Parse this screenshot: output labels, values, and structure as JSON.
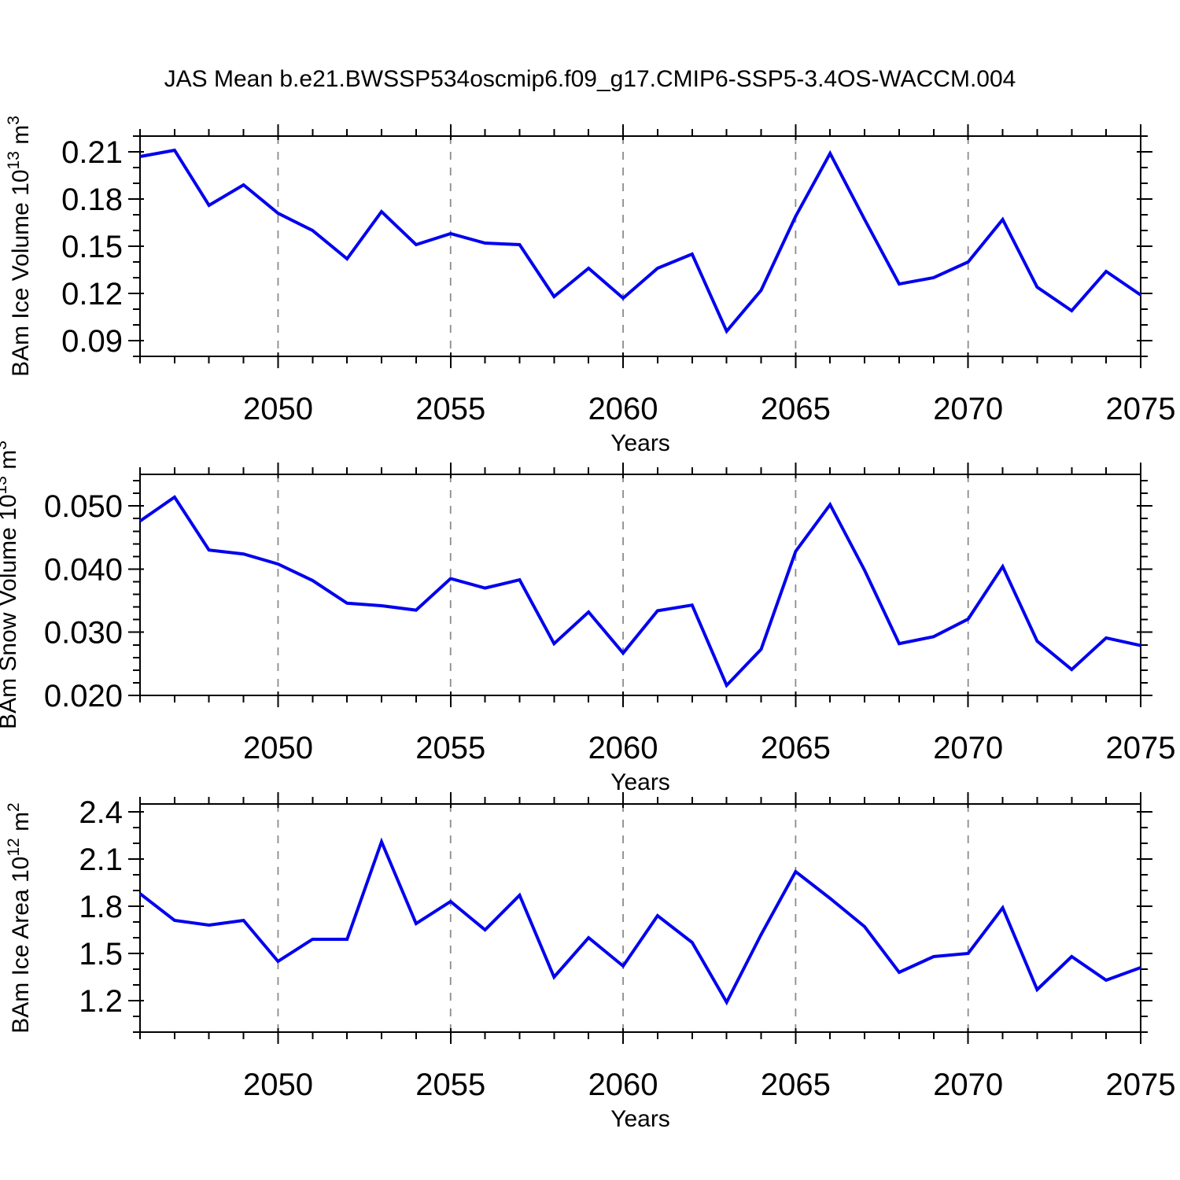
{
  "title": "JAS Mean b.e21.BWSSP534oscmip6.f09_g17.CMIP6-SSP5-3.4OS-WACCM.004",
  "colors": {
    "line": "#0000ee",
    "grid": "#8c8c8c",
    "axis": "#000000",
    "text": "#000000",
    "background": "#ffffff"
  },
  "chart_data": [
    {
      "type": "line",
      "name": "ice-volume",
      "ylabel": "BAm Ice Volume 10¹³ m³",
      "ylabel_parts": [
        {
          "t": "BAm Ice Volume 10"
        },
        {
          "t": "13",
          "sup": true
        },
        {
          "t": " m"
        },
        {
          "t": "3",
          "sup": true
        }
      ],
      "xlabel": "Years",
      "x": [
        2046,
        2047,
        2048,
        2049,
        2050,
        2051,
        2052,
        2053,
        2054,
        2055,
        2056,
        2057,
        2058,
        2059,
        2060,
        2061,
        2062,
        2063,
        2064,
        2065,
        2066,
        2067,
        2068,
        2069,
        2070,
        2071,
        2072,
        2073,
        2074,
        2075
      ],
      "values": [
        0.207,
        0.211,
        0.176,
        0.189,
        0.171,
        0.16,
        0.142,
        0.172,
        0.151,
        0.158,
        0.152,
        0.151,
        0.118,
        0.136,
        0.117,
        0.136,
        0.145,
        0.096,
        0.122,
        0.169,
        0.209,
        0.167,
        0.126,
        0.13,
        0.14,
        0.167,
        0.124,
        0.109,
        0.134,
        0.119
      ],
      "xlim": [
        2046,
        2075
      ],
      "ylim": [
        0.08,
        0.22
      ],
      "xticks": [
        2050,
        2055,
        2060,
        2065,
        2070,
        2075
      ],
      "xtick_labels": [
        "2050",
        "2055",
        "2060",
        "2065",
        "2070",
        "2075"
      ],
      "x_minor_step": 1,
      "yticks": [
        0.09,
        0.12,
        0.15,
        0.18,
        0.21
      ],
      "ytick_labels": [
        "0.09",
        "0.12",
        "0.15",
        "0.18",
        "0.21"
      ],
      "y_minor_step": 0.01,
      "grid": "vertical-dashed-at-major-x",
      "legend": "none"
    },
    {
      "type": "line",
      "name": "snow-volume",
      "ylabel": "BAm Snow Volume 10¹³ m³",
      "ylabel_parts": [
        {
          "t": "BAm Snow Volume 10"
        },
        {
          "t": "13",
          "sup": true
        },
        {
          "t": " m"
        },
        {
          "t": "3",
          "sup": true
        }
      ],
      "xlabel": "Years",
      "x": [
        2046,
        2047,
        2048,
        2049,
        2050,
        2051,
        2052,
        2053,
        2054,
        2055,
        2056,
        2057,
        2058,
        2059,
        2060,
        2061,
        2062,
        2063,
        2064,
        2065,
        2066,
        2067,
        2068,
        2069,
        2070,
        2071,
        2072,
        2073,
        2074,
        2075
      ],
      "values": [
        0.0476,
        0.0514,
        0.043,
        0.0424,
        0.0408,
        0.0382,
        0.0346,
        0.0342,
        0.0335,
        0.0385,
        0.037,
        0.0383,
        0.0282,
        0.0332,
        0.0267,
        0.0334,
        0.0343,
        0.0216,
        0.0273,
        0.0428,
        0.0502,
        0.0398,
        0.0282,
        0.0293,
        0.0321,
        0.0404,
        0.0286,
        0.0241,
        0.0291,
        0.0279
      ],
      "xlim": [
        2046,
        2075
      ],
      "ylim": [
        0.02,
        0.055
      ],
      "xticks": [
        2050,
        2055,
        2060,
        2065,
        2070,
        2075
      ],
      "xtick_labels": [
        "2050",
        "2055",
        "2060",
        "2065",
        "2070",
        "2075"
      ],
      "x_minor_step": 1,
      "yticks": [
        0.02,
        0.03,
        0.04,
        0.05
      ],
      "ytick_labels": [
        "0.020",
        "0.030",
        "0.040",
        "0.050"
      ],
      "y_minor_step": 0.002,
      "grid": "vertical-dashed-at-major-x",
      "legend": "none"
    },
    {
      "type": "line",
      "name": "ice-area",
      "ylabel": "BAm Ice Area 10¹² m²",
      "ylabel_parts": [
        {
          "t": "BAm Ice Area 10"
        },
        {
          "t": "12",
          "sup": true
        },
        {
          "t": " m"
        },
        {
          "t": "2",
          "sup": true
        }
      ],
      "xlabel": "Years",
      "x": [
        2046,
        2047,
        2048,
        2049,
        2050,
        2051,
        2052,
        2053,
        2054,
        2055,
        2056,
        2057,
        2058,
        2059,
        2060,
        2061,
        2062,
        2063,
        2064,
        2065,
        2066,
        2067,
        2068,
        2069,
        2070,
        2071,
        2072,
        2073,
        2074,
        2075
      ],
      "values": [
        1.88,
        1.71,
        1.68,
        1.71,
        1.45,
        1.59,
        1.59,
        2.21,
        1.69,
        1.83,
        1.65,
        1.87,
        1.35,
        1.6,
        1.42,
        1.74,
        1.57,
        1.19,
        1.62,
        2.02,
        1.85,
        1.67,
        1.38,
        1.48,
        1.5,
        1.79,
        1.27,
        1.48,
        1.33,
        1.41
      ],
      "xlim": [
        2046,
        2075
      ],
      "ylim": [
        1.0,
        2.45
      ],
      "xticks": [
        2050,
        2055,
        2060,
        2065,
        2070,
        2075
      ],
      "xtick_labels": [
        "2050",
        "2055",
        "2060",
        "2065",
        "2070",
        "2075"
      ],
      "x_minor_step": 1,
      "yticks": [
        1.2,
        1.5,
        1.8,
        2.1,
        2.4
      ],
      "ytick_labels": [
        "1.2",
        "1.5",
        "1.8",
        "2.1",
        "2.4"
      ],
      "y_minor_step": 0.1,
      "grid": "vertical-dashed-at-major-x",
      "legend": "none"
    }
  ]
}
